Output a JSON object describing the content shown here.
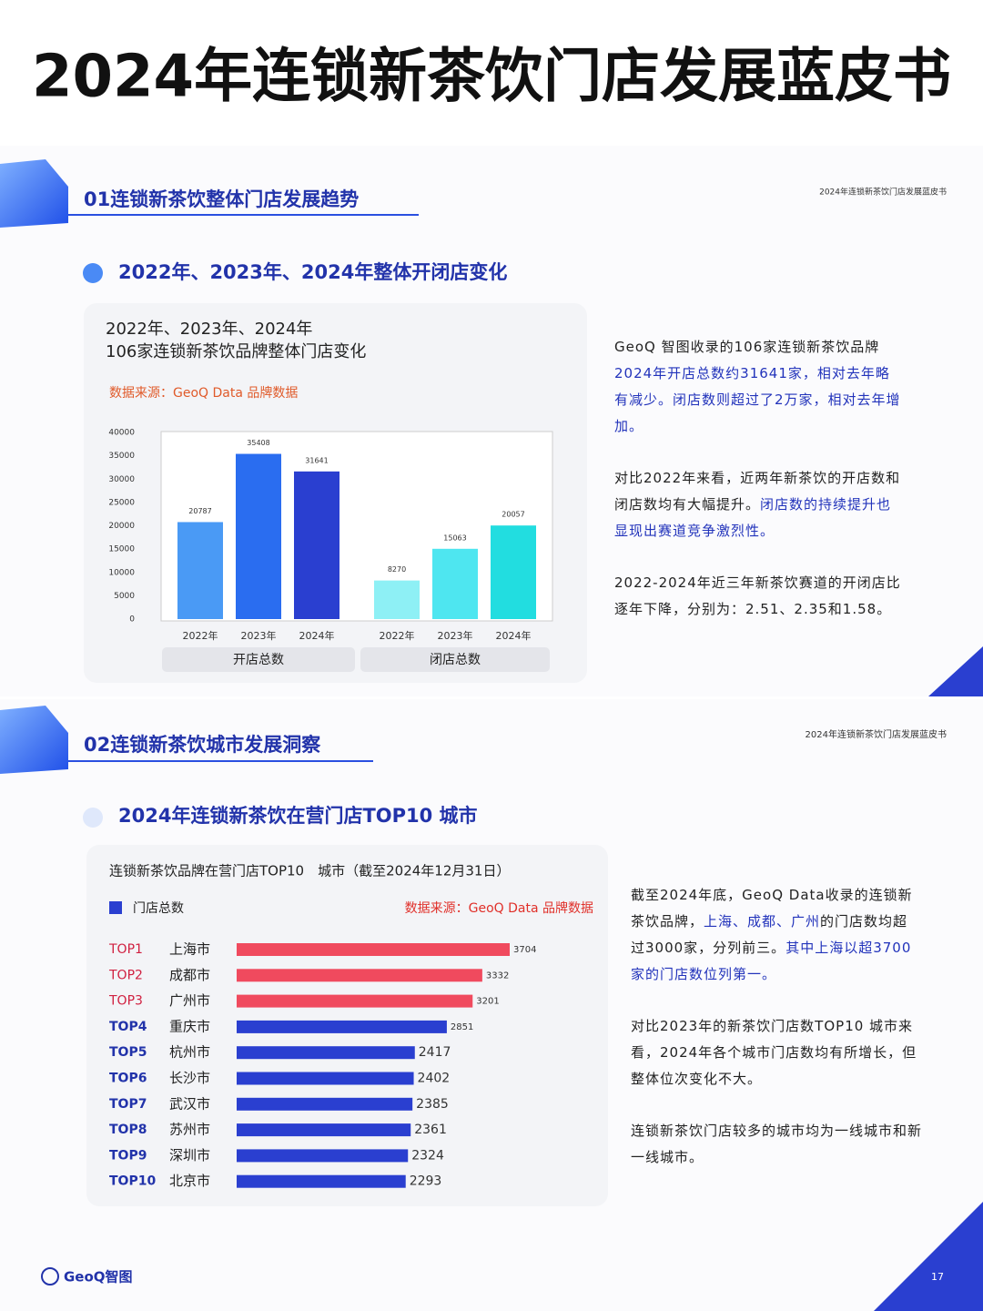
{
  "header": {
    "title": "2024年连锁新茶饮门店发展蓝皮书"
  },
  "section1": {
    "heading": "01连锁新茶饮整体门店发展趋势",
    "corner": "2024年连锁新茶饮门店发展蓝皮书",
    "subtitle": "2022年、2023年、2024年整体开闭店变化",
    "paragraphs": [
      [
        {
          "text": "GeoQ 智图收录的106家连锁新茶饮品牌",
          "emphasis": false
        },
        {
          "text": "2024年开店总数约31641家，相对去年略有减少。闭店数则超过了2万家，相对去年增加。",
          "emphasis": true
        }
      ],
      [
        {
          "text": "对比2022年来看，近两年新茶饮的开店数和闭店数均有大幅提升。",
          "emphasis": false
        },
        {
          "text": "闭店数的持续提升也显现出赛道竞争激烈性。",
          "emphasis": true
        }
      ],
      [
        {
          "text": "2022-2024年近三年新茶饮赛道的开闭店比逐年下降，分别为：2.51、2.35和1.58。",
          "emphasis": false
        }
      ]
    ]
  },
  "section2": {
    "heading": "02连锁新茶饮城市发展洞察",
    "corner": "2024年连锁新茶饮门店发展蓝皮书",
    "subtitle": "2024年连锁新茶饮在营门店TOP10 城市",
    "paragraphs": [
      [
        {
          "text": "截至2024年底，GeoQ Data收录的连锁新茶饮品牌，",
          "emphasis": false
        },
        {
          "text": "上海、成都、广州",
          "emphasis": true
        },
        {
          "text": "的门店数均超过3000家，分列前三。",
          "emphasis": false
        },
        {
          "text": "其中上海以超3700家的门店数位列第一。",
          "emphasis": true
        }
      ],
      [
        {
          "text": "对比2023年的新茶饮门店数TOP10 城市来看，2024年各个城市门店数均有所增长，但整体位次变化不大。",
          "emphasis": false
        }
      ],
      [
        {
          "text": "连锁新茶饮门店较多的城市均为一线城市和新一线城市。",
          "emphasis": false
        }
      ]
    ]
  },
  "chart_data": [
    {
      "type": "bar",
      "title": "2022年、2023年、2024年",
      "subtitle": "106家连锁新茶饮品牌整体门店变化",
      "source": "数据来源：GeoQ Data 品牌数据",
      "groups": [
        {
          "name": "开店总数",
          "categories": [
            "2022年",
            "2023年",
            "2024年"
          ],
          "values": [
            20787,
            35408,
            31641
          ],
          "colors": [
            "#4a9af5",
            "#2a6df0",
            "#2a3fd0"
          ]
        },
        {
          "name": "闭店总数",
          "categories": [
            "2022年",
            "2023年",
            "2024年"
          ],
          "values": [
            8270,
            15063,
            20057
          ],
          "colors": [
            "#8ef0f5",
            "#4ee6f0",
            "#22dde0"
          ]
        }
      ],
      "ylim": [
        0,
        40000
      ],
      "yticks": [
        0,
        5000,
        10000,
        15000,
        20000,
        25000,
        30000,
        35000,
        40000
      ]
    },
    {
      "type": "hbar",
      "title": "连锁新茶饮品牌在营门店TOP10　城市（截至2024年12月31日）",
      "source": "数据来源：GeoQ Data 品牌数据",
      "ranks": [
        "TOP1",
        "TOP2",
        "TOP3",
        "TOP4",
        "TOP5",
        "TOP6",
        "TOP7",
        "TOP8",
        "TOP9",
        "TOP10"
      ],
      "categories": [
        "上海市",
        "成都市",
        "广州市",
        "重庆市",
        "杭州市",
        "长沙市",
        "武汉市",
        "苏州市",
        "深圳市",
        "北京市"
      ],
      "series": [
        {
          "name": "门店总数",
          "color": "#2a3fd0",
          "values": [
            3704,
            3332,
            3201,
            2851,
            2417,
            2402,
            2385,
            2361,
            2324,
            2293
          ],
          "colors": [
            "#f04a5e",
            "#f04a5e",
            "#f04a5e",
            "#2a3fd0",
            "#2a3fd0",
            "#2a3fd0",
            "#2a3fd0",
            "#2a3fd0",
            "#2a3fd0",
            "#2a3fd0"
          ]
        }
      ]
    }
  ],
  "footer": {
    "logo": "GeoQ智图",
    "page": "17"
  }
}
